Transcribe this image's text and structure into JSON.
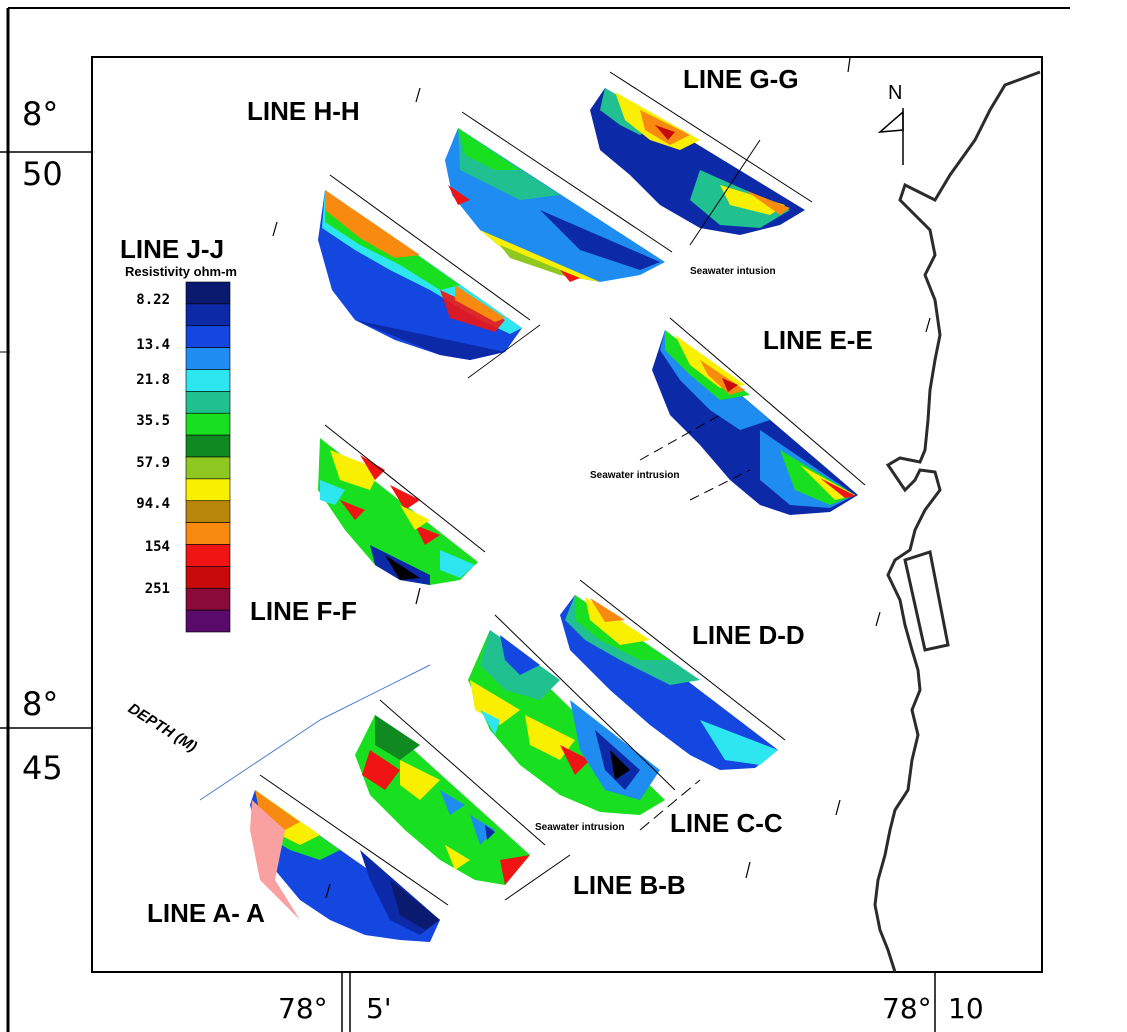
{
  "map": {
    "frame_labels": {
      "lat_top_deg": "8°",
      "lat_top_min": "50",
      "lat_bottom_deg": "8°",
      "lat_bottom_min": "45",
      "lon_left_deg": "78°",
      "lon_left_min": "5'",
      "lon_right_deg": "78°",
      "lon_right_min": "10"
    },
    "north_label": "N",
    "depth_label": "DEPTH (M)",
    "lines": [
      {
        "id": "A",
        "label": "LINE A- A"
      },
      {
        "id": "B",
        "label": "LINE B-B"
      },
      {
        "id": "C",
        "label": "LINE C-C"
      },
      {
        "id": "D",
        "label": "LINE D-D"
      },
      {
        "id": "E",
        "label": "LINE E-E"
      },
      {
        "id": "F",
        "label": "LINE F-F"
      },
      {
        "id": "G",
        "label": "LINE G-G"
      },
      {
        "id": "H",
        "label": "LINE H-H"
      },
      {
        "id": "J",
        "label": "LINE J-J"
      }
    ],
    "annotations": {
      "seawater_g": "Seawater intusion",
      "seawater_e": "Seawater intrusion",
      "seawater_c": "Seawater intrusion"
    },
    "legend": {
      "title": "Resistivity ohm-m",
      "values": [
        "8.22",
        "13.4",
        "21.8",
        "35.5",
        "57.9",
        "94.4",
        "154",
        "251"
      ],
      "colors": [
        "#0a1a6e",
        "#0c2aa8",
        "#1446e0",
        "#1e8cf0",
        "#2ee6f0",
        "#20c090",
        "#18e020",
        "#108a20",
        "#8ec820",
        "#f8f000",
        "#b8860b",
        "#f88a10",
        "#f01414",
        "#c80a0a",
        "#8a0a3a",
        "#5a0a6a"
      ]
    }
  }
}
